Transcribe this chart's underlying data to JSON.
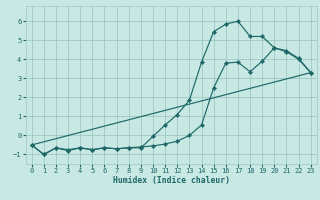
{
  "background_color": "#c8e8e4",
  "grid_color": "#a0c8c4",
  "line_color": "#1e6868",
  "xlabel": "Humidex (Indice chaleur)",
  "xlim": [
    -0.5,
    23.5
  ],
  "ylim": [
    -1.5,
    6.8
  ],
  "yticks": [
    -1,
    0,
    1,
    2,
    3,
    4,
    5,
    6
  ],
  "xticks": [
    0,
    1,
    2,
    3,
    4,
    5,
    6,
    7,
    8,
    9,
    10,
    11,
    12,
    13,
    14,
    15,
    16,
    17,
    18,
    19,
    20,
    21,
    22,
    23
  ],
  "curve1_x": [
    0,
    1,
    2,
    3,
    4,
    5,
    6,
    7,
    8,
    9,
    10,
    11,
    12,
    13,
    14,
    15,
    16,
    17,
    18,
    19,
    20,
    21,
    22,
    23
  ],
  "curve1_y": [
    -0.5,
    -1.0,
    -0.65,
    -0.8,
    -0.65,
    -0.75,
    -0.65,
    -0.7,
    -0.65,
    -0.65,
    -0.05,
    0.55,
    1.1,
    1.85,
    3.85,
    5.45,
    5.85,
    6.0,
    5.2,
    5.2,
    4.6,
    4.4,
    4.0,
    3.3
  ],
  "curve2_x": [
    0,
    1,
    2,
    3,
    4,
    5,
    6,
    7,
    8,
    9,
    10,
    11,
    12,
    13,
    14,
    15,
    16,
    17,
    18,
    19,
    20,
    21,
    22,
    23
  ],
  "curve2_y": [
    -0.5,
    -1.0,
    -0.65,
    -0.75,
    -0.65,
    -0.75,
    -0.65,
    -0.7,
    -0.65,
    -0.6,
    -0.55,
    -0.45,
    -0.3,
    -0.0,
    0.55,
    2.5,
    3.8,
    3.85,
    3.35,
    3.9,
    4.6,
    4.45,
    4.05,
    3.3
  ],
  "curve3_x": [
    0,
    23
  ],
  "curve3_y": [
    -0.5,
    3.3
  ]
}
